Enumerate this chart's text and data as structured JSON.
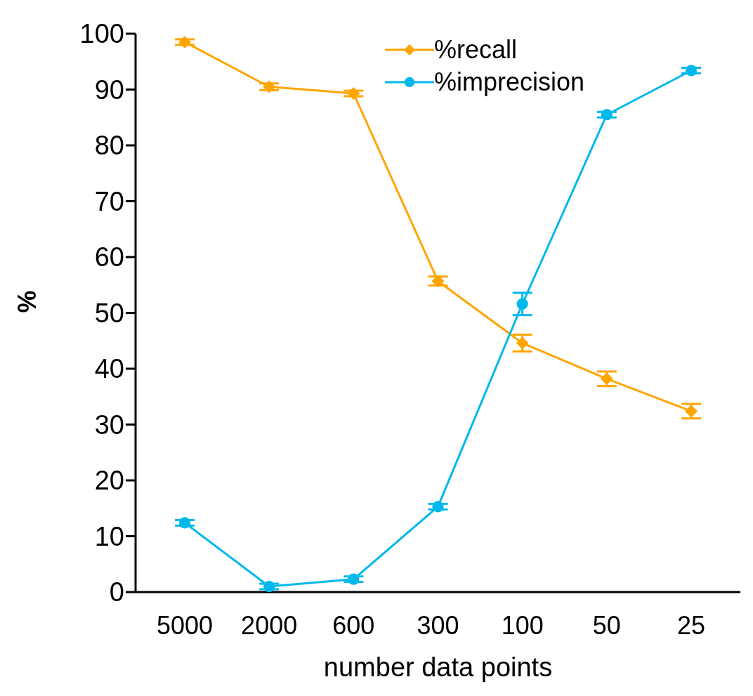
{
  "chart_data": {
    "type": "line",
    "xlabel": "number data points",
    "ylabel": "%",
    "categories": [
      "5000",
      "2000",
      "600",
      "300",
      "100",
      "50",
      "25"
    ],
    "series": [
      {
        "name": "%recall",
        "color": "#ffa500",
        "marker": "diamond",
        "values": [
          98.5,
          90.5,
          89.3,
          55.7,
          44.6,
          38.2,
          32.4
        ],
        "errors": [
          0.5,
          0.6,
          0.5,
          0.8,
          1.5,
          1.3,
          1.3
        ]
      },
      {
        "name": "%imprecision",
        "color": "#00b8ec",
        "marker": "circle",
        "values": [
          12.4,
          1.0,
          2.3,
          15.3,
          51.6,
          85.5,
          93.4
        ],
        "errors": [
          0.5,
          0.5,
          0.5,
          0.5,
          2,
          0.5,
          0.5
        ]
      }
    ],
    "ylim": [
      0,
      100
    ],
    "yticks": [
      0,
      10,
      20,
      30,
      40,
      50,
      60,
      70,
      80,
      90,
      100
    ],
    "grid": false,
    "legend": "top"
  }
}
